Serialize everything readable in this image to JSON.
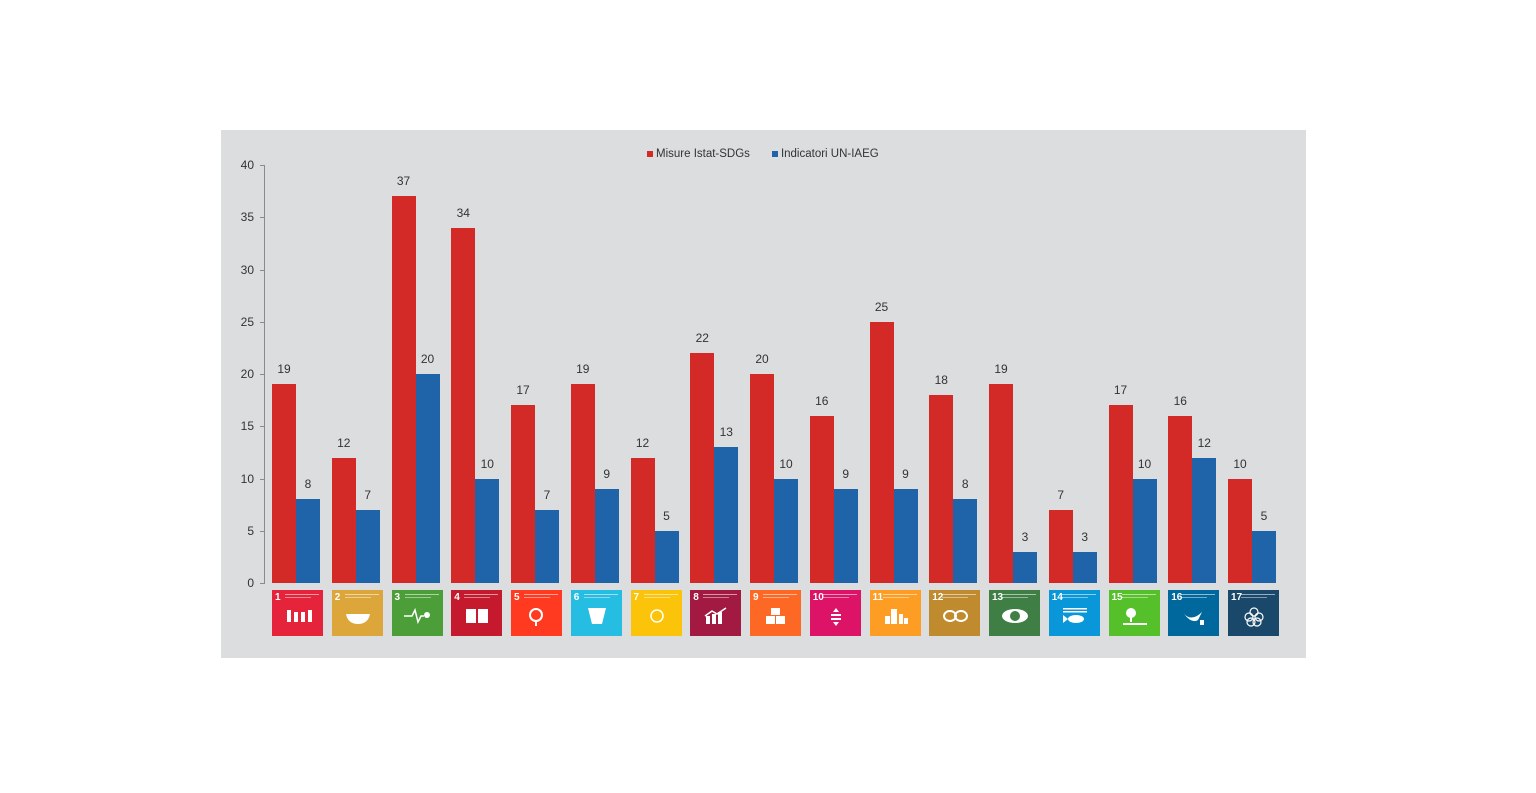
{
  "chart_data": {
    "type": "bar",
    "title": "",
    "xlabel": "",
    "ylabel": "",
    "ylim": [
      0,
      40
    ],
    "yticks": [
      0,
      5,
      10,
      15,
      20,
      25,
      30,
      35,
      40
    ],
    "grid": false,
    "legend_position": "top",
    "categories": [
      "SDG 1",
      "SDG 2",
      "SDG 3",
      "SDG 4",
      "SDG 5",
      "SDG 6",
      "SDG 7",
      "SDG 8",
      "SDG 9",
      "SDG 10",
      "SDG 11",
      "SDG 12",
      "SDG 13",
      "SDG 14",
      "SDG 15",
      "SDG 16",
      "SDG 17"
    ],
    "series": [
      {
        "name": "Misure Istat-SDGs",
        "color": "#d42a27",
        "values": [
          19,
          12,
          37,
          34,
          17,
          19,
          12,
          22,
          20,
          16,
          25,
          18,
          19,
          7,
          17,
          16,
          10
        ]
      },
      {
        "name": "Indicatori UN-IAEG",
        "color": "#1f63a8",
        "values": [
          8,
          7,
          20,
          10,
          7,
          9,
          5,
          13,
          10,
          9,
          9,
          8,
          3,
          3,
          10,
          12,
          5
        ]
      }
    ]
  },
  "legend": {
    "items": [
      {
        "label": "Misure Istat-SDGs",
        "color": "#d42a27"
      },
      {
        "label": "Indicatori UN-IAEG",
        "color": "#1f63a8"
      }
    ]
  },
  "yaxis": {
    "ticks": [
      "0",
      "5",
      "10",
      "15",
      "20",
      "25",
      "30",
      "35",
      "40"
    ]
  },
  "sdg_tiles": [
    {
      "number": "1",
      "icon": "family-icon",
      "color": "#e5243b"
    },
    {
      "number": "2",
      "icon": "bowl-icon",
      "color": "#dda63a"
    },
    {
      "number": "3",
      "icon": "heartbeat-icon",
      "color": "#4c9f38"
    },
    {
      "number": "4",
      "icon": "book-icon",
      "color": "#c5192d"
    },
    {
      "number": "5",
      "icon": "gender-icon",
      "color": "#ff3a21"
    },
    {
      "number": "6",
      "icon": "water-drop-icon",
      "color": "#26bde2"
    },
    {
      "number": "7",
      "icon": "sun-icon",
      "color": "#fcc30b"
    },
    {
      "number": "8",
      "icon": "growth-chart-icon",
      "color": "#a21942"
    },
    {
      "number": "9",
      "icon": "cubes-icon",
      "color": "#fd6925"
    },
    {
      "number": "10",
      "icon": "equality-icon",
      "color": "#dd1367"
    },
    {
      "number": "11",
      "icon": "city-icon",
      "color": "#fd9d24"
    },
    {
      "number": "12",
      "icon": "infinity-icon",
      "color": "#bf8b2e"
    },
    {
      "number": "13",
      "icon": "eye-globe-icon",
      "color": "#3f7e44"
    },
    {
      "number": "14",
      "icon": "fish-icon",
      "color": "#0a97d9"
    },
    {
      "number": "15",
      "icon": "tree-icon",
      "color": "#56c02b"
    },
    {
      "number": "16",
      "icon": "dove-icon",
      "color": "#00689d"
    },
    {
      "number": "17",
      "icon": "flower-icon",
      "color": "#19486a"
    }
  ]
}
